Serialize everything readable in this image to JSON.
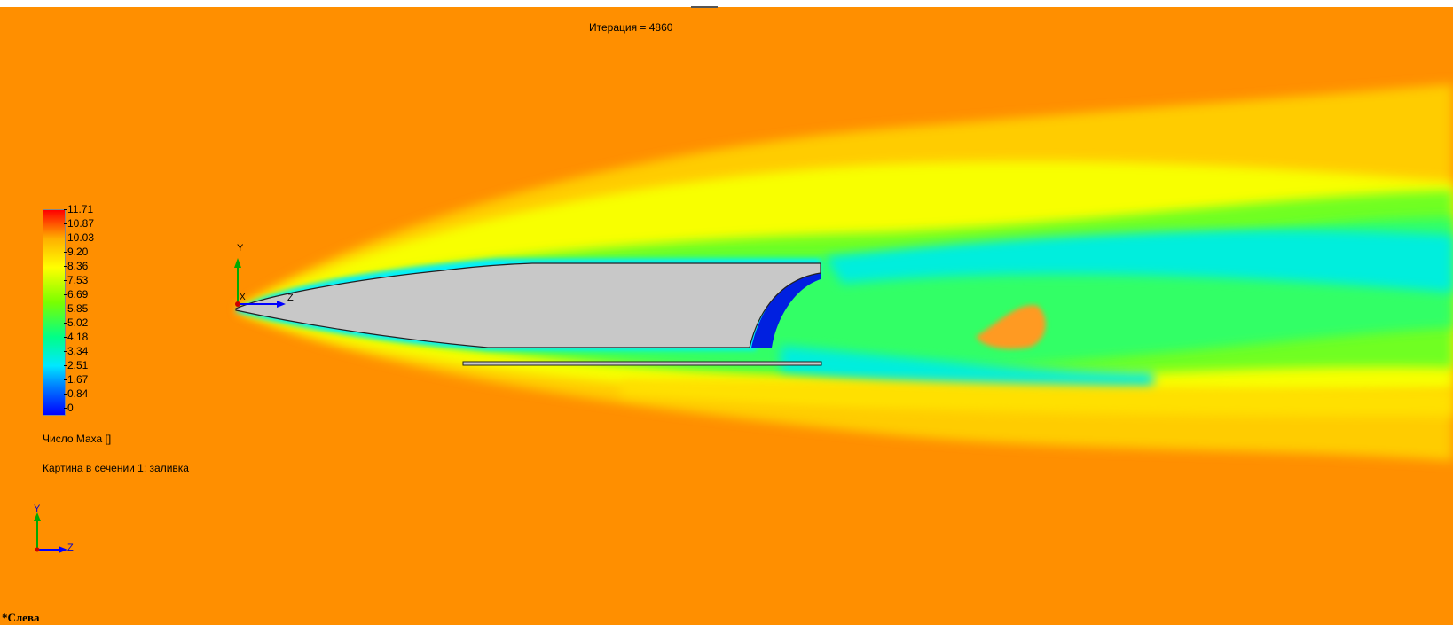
{
  "header": {
    "iteration": "Итерация = 4860"
  },
  "legend": {
    "ticks": [
      "11.71",
      "10.87",
      "10.03",
      "9.20",
      "8.36",
      "7.53",
      "6.69",
      "5.85",
      "5.02",
      "4.18",
      "3.34",
      "2.51",
      "1.67",
      "0.84",
      "0"
    ],
    "parameter": "Число Маха []",
    "cut_plot": "Картина в сечении 1: заливка",
    "colors": {
      "max": "#ff0000",
      "high": "#ffff00",
      "mid": "#00ff88",
      "low": "#00e8ff",
      "min": "#0000ff"
    }
  },
  "triad": {
    "y_label": "Y",
    "z_label": "Z",
    "x_label": "X"
  },
  "view": {
    "name": "*Слева"
  },
  "colors": {
    "background": "#ff8f00",
    "body": "#c8c8c8"
  }
}
